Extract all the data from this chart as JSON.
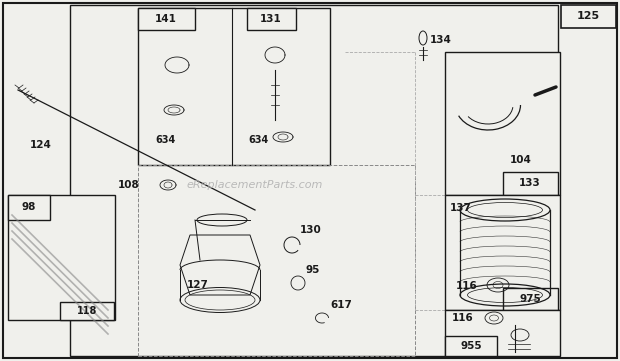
{
  "bg_color": "#f0f0ec",
  "ec": "#1a1a1a",
  "watermark": "eReplacementParts.com",
  "fig_w": 6.2,
  "fig_h": 3.61,
  "dpi": 100
}
